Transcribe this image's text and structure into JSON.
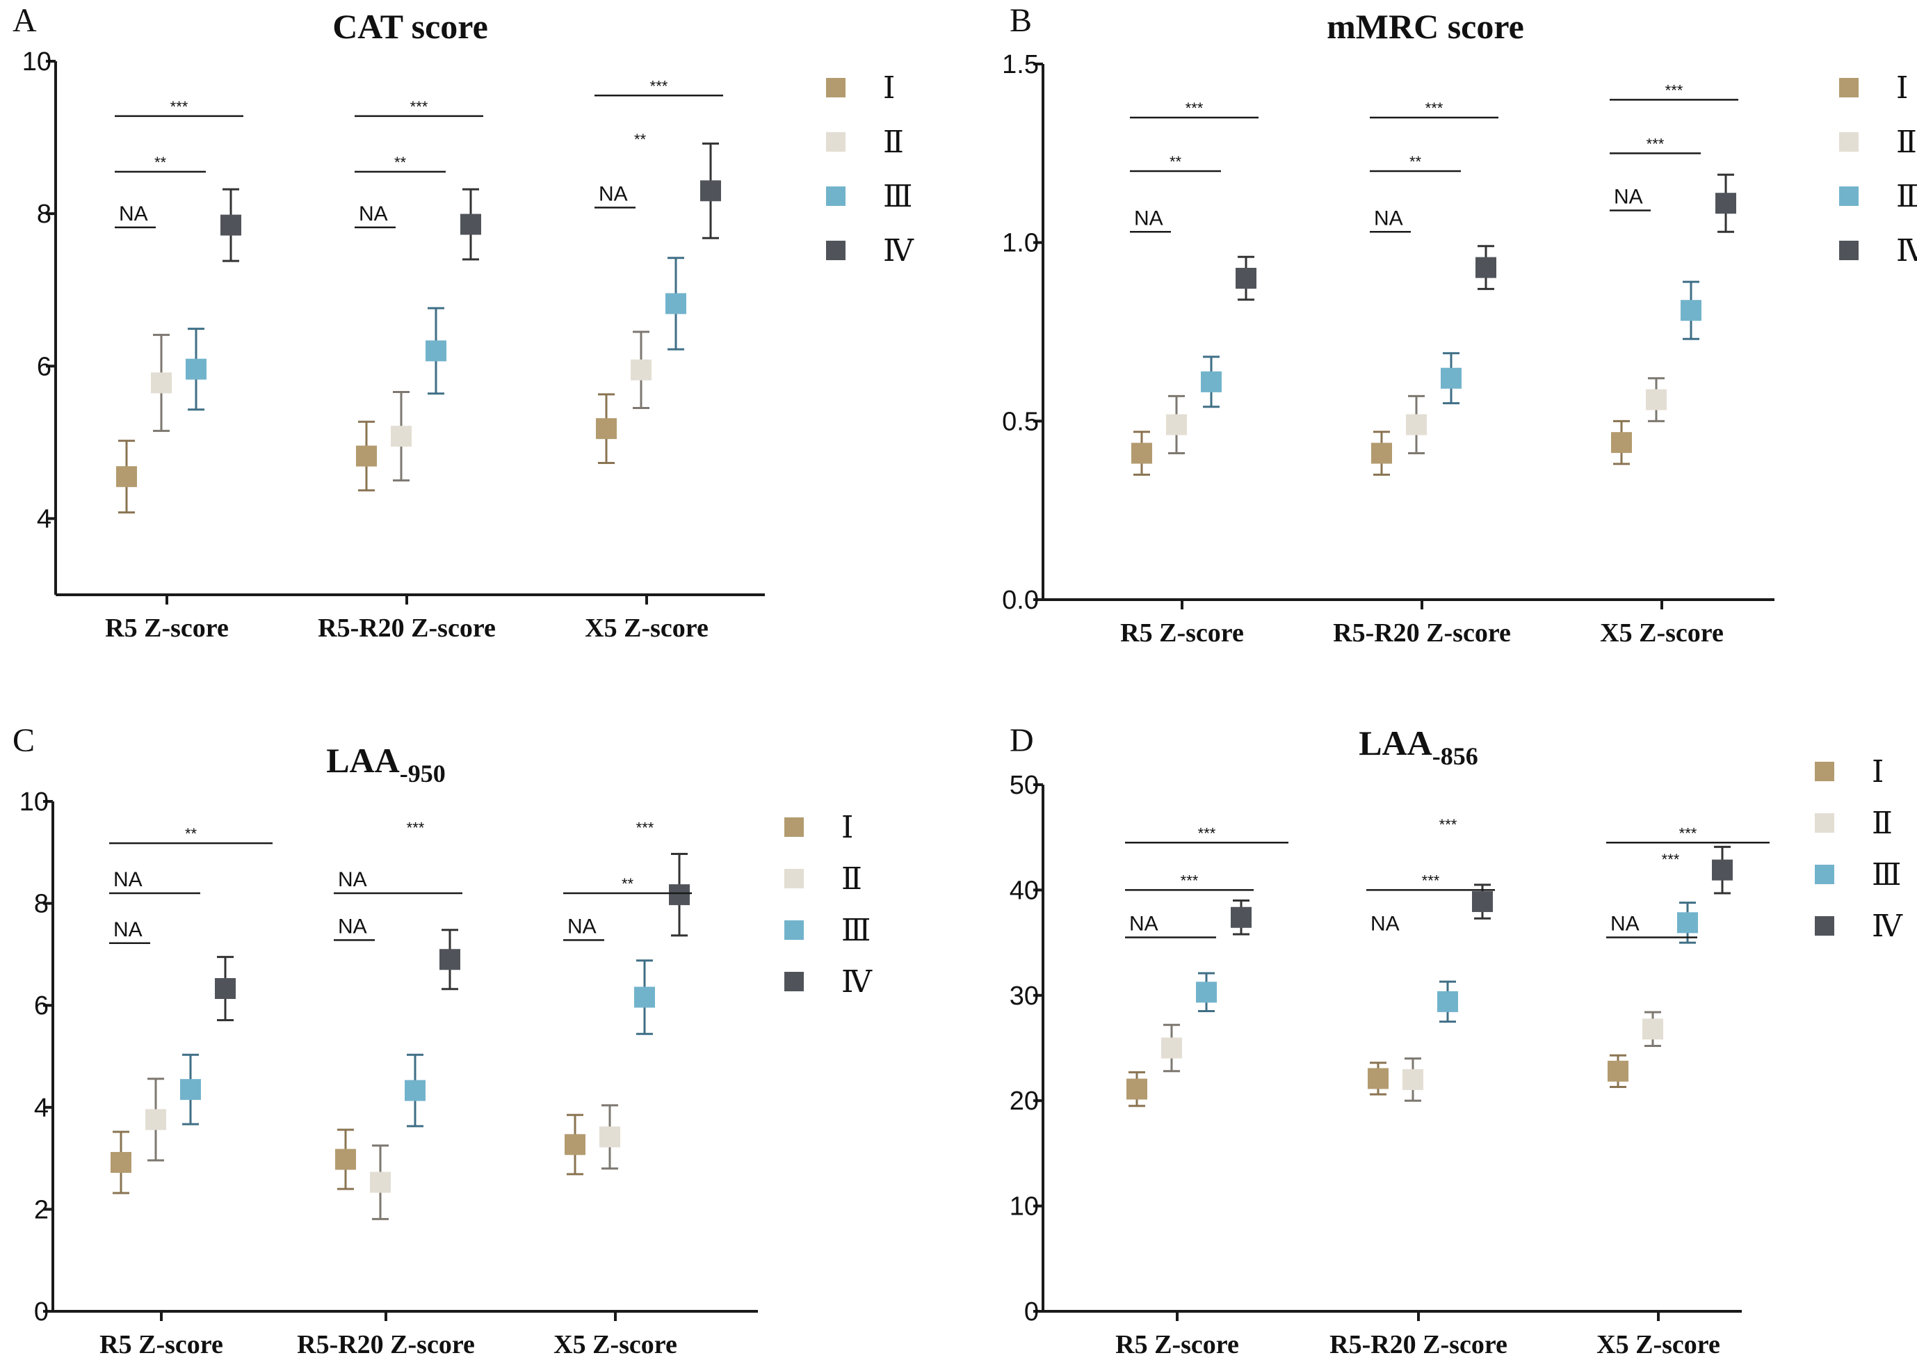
{
  "colors": {
    "I": "#b39b6f",
    "II": "#e3ded3",
    "III": "#72b3cc",
    "IV": "#50545a",
    "I_err": "#8a7452",
    "II_err": "#7d7870",
    "III_err": "#3f6f86",
    "IV_err": "#333333"
  },
  "legend": [
    "Ⅰ",
    "Ⅱ",
    "Ⅲ",
    "Ⅳ"
  ],
  "chart_data": [
    {
      "panel": "A",
      "title": "CAT score",
      "type": "scatter",
      "categories": [
        "R5 Z-score",
        "R5-R20 Z-score",
        "X5 Z-score"
      ],
      "yticks": [
        "4",
        "6",
        "8",
        "10"
      ],
      "ylim": [
        3,
        10
      ],
      "series": [
        {
          "name": "Ⅰ",
          "values": [
            4.55,
            4.82,
            5.18
          ],
          "errors": [
            0.47,
            0.45,
            0.45
          ]
        },
        {
          "name": "Ⅱ",
          "values": [
            5.78,
            5.08,
            5.95
          ],
          "errors": [
            0.63,
            0.58,
            0.5
          ]
        },
        {
          "name": "Ⅲ",
          "values": [
            5.96,
            6.2,
            6.82
          ],
          "errors": [
            0.53,
            0.56,
            0.6
          ]
        },
        {
          "name": "Ⅳ",
          "values": [
            7.85,
            7.86,
            8.3
          ],
          "errors": [
            0.47,
            0.46,
            0.62
          ]
        }
      ],
      "annotations": [
        {
          "category": 0,
          "from": 0,
          "to": 0,
          "label": "NA",
          "y": 7.82
        },
        {
          "category": 0,
          "from": 0,
          "to": 1,
          "label": "**",
          "y": 8.55
        },
        {
          "category": 0,
          "from": 0,
          "to": 2,
          "label": "***",
          "y": 9.28
        },
        {
          "category": 1,
          "from": 0,
          "to": 0,
          "label": "NA",
          "y": 7.82
        },
        {
          "category": 1,
          "from": 0,
          "to": 1,
          "label": "**",
          "y": 8.55
        },
        {
          "category": 1,
          "from": 0,
          "to": 2,
          "label": "***",
          "y": 9.28
        },
        {
          "category": 2,
          "from": 0,
          "to": 0,
          "label": "NA",
          "y": 8.08
        },
        {
          "category": 2,
          "from": 0,
          "to": 1,
          "label": "**",
          "y": 8.85,
          "noline": true
        },
        {
          "category": 2,
          "from": 0,
          "to": 2,
          "label": "***",
          "y": 9.55
        }
      ]
    },
    {
      "panel": "B",
      "title": "mMRC score",
      "type": "scatter",
      "categories": [
        "R5 Z-score",
        "R5-R20 Z-score",
        "X5 Z-score"
      ],
      "yticks": [
        "0.0",
        "0.5",
        "1.0",
        "1.5"
      ],
      "ylim": [
        0,
        1.5
      ],
      "series": [
        {
          "name": "Ⅰ",
          "values": [
            0.41,
            0.41,
            0.44
          ],
          "errors": [
            0.06,
            0.06,
            0.06
          ]
        },
        {
          "name": "Ⅱ",
          "values": [
            0.49,
            0.49,
            0.56
          ],
          "errors": [
            0.08,
            0.08,
            0.06
          ]
        },
        {
          "name": "Ⅲ",
          "values": [
            0.61,
            0.62,
            0.81
          ],
          "errors": [
            0.07,
            0.07,
            0.08
          ]
        },
        {
          "name": "Ⅳ",
          "values": [
            0.9,
            0.93,
            1.11
          ],
          "errors": [
            0.06,
            0.06,
            0.08
          ]
        }
      ],
      "annotations": [
        {
          "category": 0,
          "from": 0,
          "to": 0,
          "label": "NA",
          "y": 1.03
        },
        {
          "category": 0,
          "from": 0,
          "to": 1,
          "label": "**",
          "y": 1.2
        },
        {
          "category": 0,
          "from": 0,
          "to": 2,
          "label": "***",
          "y": 1.35
        },
        {
          "category": 1,
          "from": 0,
          "to": 0,
          "label": "NA",
          "y": 1.03
        },
        {
          "category": 1,
          "from": 0,
          "to": 1,
          "label": "**",
          "y": 1.2
        },
        {
          "category": 1,
          "from": 0,
          "to": 2,
          "label": "***",
          "y": 1.35
        },
        {
          "category": 2,
          "from": 0,
          "to": 0,
          "label": "NA",
          "y": 1.09
        },
        {
          "category": 2,
          "from": 0,
          "to": 1,
          "label": "***",
          "y": 1.25
        },
        {
          "category": 2,
          "from": 0,
          "to": 2,
          "label": "***",
          "y": 1.4
        }
      ]
    },
    {
      "panel": "C",
      "title": "LAA",
      "title_sub": "-950",
      "type": "scatter",
      "categories": [
        "R5 Z-score",
        "R5-R20 Z-score",
        "X5 Z-score"
      ],
      "yticks": [
        "0",
        "2",
        "4",
        "6",
        "8",
        "10"
      ],
      "ylim": [
        0,
        10
      ],
      "series": [
        {
          "name": "Ⅰ",
          "values": [
            2.92,
            2.98,
            3.27
          ],
          "errors": [
            0.6,
            0.58,
            0.58
          ]
        },
        {
          "name": "Ⅱ",
          "values": [
            3.76,
            2.53,
            3.42
          ],
          "errors": [
            0.8,
            0.72,
            0.62
          ]
        },
        {
          "name": "Ⅲ",
          "values": [
            4.35,
            4.33,
            6.16
          ],
          "errors": [
            0.68,
            0.7,
            0.72
          ]
        },
        {
          "name": "Ⅳ",
          "values": [
            6.33,
            6.9,
            8.17
          ],
          "errors": [
            0.62,
            0.58,
            0.8
          ]
        }
      ],
      "annotations": [
        {
          "category": 0,
          "from": 0,
          "to": 0,
          "label": "NA",
          "y": 7.22
        },
        {
          "category": 0,
          "from": 0,
          "to": 1,
          "label": "NA",
          "y": 8.2
        },
        {
          "category": 0,
          "from": 0,
          "to": 3,
          "label": "**",
          "y": 9.18
        },
        {
          "category": 1,
          "from": 0,
          "to": 0,
          "label": "NA",
          "y": 7.28
        },
        {
          "category": 1,
          "from": 0,
          "to": 2,
          "label": "NA",
          "y": 8.2
        },
        {
          "category": 1,
          "from": 0,
          "to": 3,
          "label": "***",
          "y": 9.3,
          "noline": true
        },
        {
          "category": 2,
          "from": 0,
          "to": 0,
          "label": "NA",
          "y": 7.28
        },
        {
          "category": 2,
          "from": 0,
          "to": 2,
          "label": "**",
          "y": 8.2
        },
        {
          "category": 2,
          "from": 0,
          "to": 3,
          "label": "***",
          "y": 9.3,
          "noline": true
        }
      ]
    },
    {
      "panel": "D",
      "title": "LAA",
      "title_sub": "-856",
      "type": "scatter",
      "categories": [
        "R5 Z-score",
        "R5-R20 Z-score",
        "X5 Z-score"
      ],
      "yticks": [
        "0",
        "10",
        "20",
        "30",
        "40",
        "50"
      ],
      "ylim": [
        0,
        50
      ],
      "series": [
        {
          "name": "Ⅰ",
          "values": [
            21.1,
            22.1,
            22.8
          ],
          "errors": [
            1.6,
            1.5,
            1.5
          ]
        },
        {
          "name": "Ⅱ",
          "values": [
            25.0,
            22.0,
            26.8
          ],
          "errors": [
            2.2,
            2.0,
            1.6
          ]
        },
        {
          "name": "Ⅲ",
          "values": [
            30.3,
            29.4,
            36.9
          ],
          "errors": [
            1.8,
            1.9,
            1.9
          ]
        },
        {
          "name": "Ⅳ",
          "values": [
            37.4,
            38.9,
            41.9
          ],
          "errors": [
            1.6,
            1.6,
            2.2
          ]
        }
      ],
      "annotations": [
        {
          "category": 0,
          "from": 0,
          "to": 1,
          "label": "NA",
          "y": 35.5
        },
        {
          "category": 0,
          "from": 0,
          "to": 2,
          "label": "***",
          "y": 40.0
        },
        {
          "category": 0,
          "from": 0,
          "to": 3,
          "label": "***",
          "y": 44.5
        },
        {
          "category": 1,
          "from": 0,
          "to": 1,
          "label": "NA",
          "y": 35.5,
          "noline": true
        },
        {
          "category": 1,
          "from": 0,
          "to": 2,
          "label": "***",
          "y": 40.0
        },
        {
          "category": 1,
          "from": 0,
          "to": 3,
          "label": "***",
          "y": 45.3,
          "noline": true
        },
        {
          "category": 2,
          "from": 0,
          "to": 1,
          "label": "NA",
          "y": 35.5
        },
        {
          "category": 2,
          "from": 0,
          "to": 2,
          "label": "***",
          "y": 42.0,
          "noline": true
        },
        {
          "category": 2,
          "from": 0,
          "to": 3,
          "label": "***",
          "y": 44.5
        }
      ]
    }
  ]
}
